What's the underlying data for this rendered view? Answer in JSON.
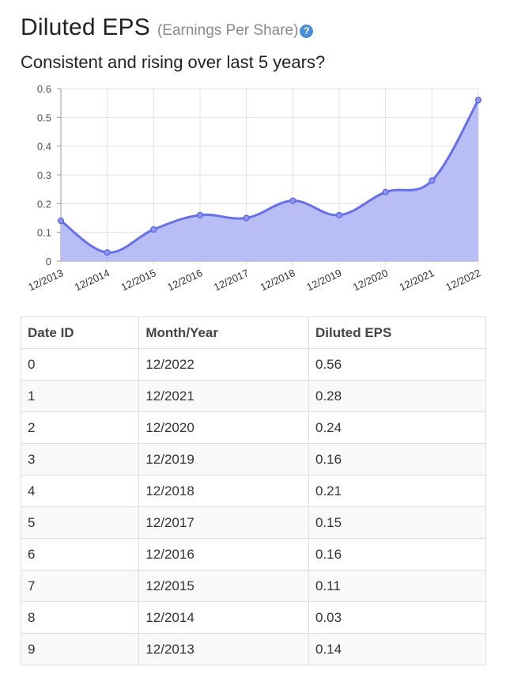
{
  "header": {
    "title": "Diluted EPS",
    "subtitle": "(Earnings Per Share)",
    "help_icon": "question-circle-icon",
    "question": "Consistent and rising over last 5 years?"
  },
  "colors": {
    "line": "#6670e8",
    "fill": "#b4b9f6",
    "help": "#4a8fd6"
  },
  "chart_data": {
    "type": "area",
    "categories": [
      "12/2013",
      "12/2014",
      "12/2015",
      "12/2016",
      "12/2017",
      "12/2018",
      "12/2019",
      "12/2020",
      "12/2021",
      "12/2022"
    ],
    "values": [
      0.14,
      0.03,
      0.11,
      0.16,
      0.15,
      0.21,
      0.16,
      0.24,
      0.28,
      0.56
    ],
    "y_ticks": [
      "0",
      "0.1",
      "0.2",
      "0.3",
      "0.4",
      "0.5",
      "0.6"
    ],
    "ylim": [
      0,
      0.6
    ],
    "grid": true
  },
  "table": {
    "headers": [
      "Date ID",
      "Month/Year",
      "Diluted EPS"
    ],
    "rows": [
      [
        "0",
        "12/2022",
        "0.56"
      ],
      [
        "1",
        "12/2021",
        "0.28"
      ],
      [
        "2",
        "12/2020",
        "0.24"
      ],
      [
        "3",
        "12/2019",
        "0.16"
      ],
      [
        "4",
        "12/2018",
        "0.21"
      ],
      [
        "5",
        "12/2017",
        "0.15"
      ],
      [
        "6",
        "12/2016",
        "0.16"
      ],
      [
        "7",
        "12/2015",
        "0.11"
      ],
      [
        "8",
        "12/2014",
        "0.03"
      ],
      [
        "9",
        "12/2013",
        "0.14"
      ]
    ]
  }
}
